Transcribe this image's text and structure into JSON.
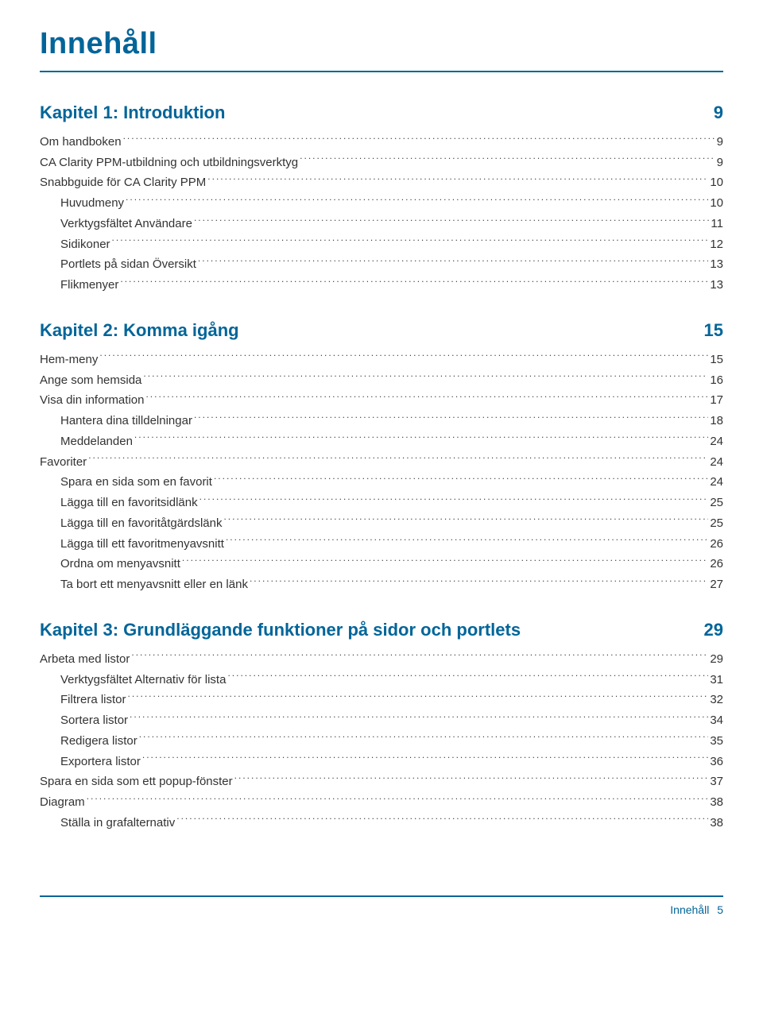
{
  "title": "Innehåll",
  "colors": {
    "heading": "#026599",
    "body_text": "#333333",
    "rule": "#026599",
    "background": "#ffffff"
  },
  "typography": {
    "title_fontsize": 38,
    "chapter_fontsize": 22,
    "entry_fontsize": 15
  },
  "chapters": [
    {
      "heading": "Kapitel 1: Introduktion",
      "page": "9",
      "entries": [
        {
          "label": "Om handboken",
          "page": "9",
          "indent": 0
        },
        {
          "label": "CA Clarity PPM-utbildning och utbildningsverktyg",
          "page": "9",
          "indent": 0
        },
        {
          "label": "Snabbguide för CA Clarity PPM",
          "page": "10",
          "indent": 0
        },
        {
          "label": "Huvudmeny",
          "page": "10",
          "indent": 1
        },
        {
          "label": "Verktygsfältet Användare",
          "page": "11",
          "indent": 1
        },
        {
          "label": "Sidikoner",
          "page": "12",
          "indent": 1
        },
        {
          "label": "Portlets på sidan Översikt",
          "page": "13",
          "indent": 1
        },
        {
          "label": "Flikmenyer",
          "page": "13",
          "indent": 1
        }
      ]
    },
    {
      "heading": "Kapitel 2: Komma igång",
      "page": "15",
      "entries": [
        {
          "label": "Hem-meny",
          "page": "15",
          "indent": 0
        },
        {
          "label": "Ange som hemsida",
          "page": "16",
          "indent": 0
        },
        {
          "label": "Visa din information",
          "page": "17",
          "indent": 0
        },
        {
          "label": "Hantera dina tilldelningar",
          "page": "18",
          "indent": 1
        },
        {
          "label": "Meddelanden",
          "page": "24",
          "indent": 1
        },
        {
          "label": "Favoriter",
          "page": "24",
          "indent": 0
        },
        {
          "label": "Spara en sida som en favorit",
          "page": "24",
          "indent": 1
        },
        {
          "label": "Lägga till en favoritsidlänk",
          "page": "25",
          "indent": 1
        },
        {
          "label": "Lägga till en favoritåtgärdslänk",
          "page": "25",
          "indent": 1
        },
        {
          "label": "Lägga till ett favoritmenyavsnitt",
          "page": "26",
          "indent": 1
        },
        {
          "label": "Ordna om menyavsnitt",
          "page": "26",
          "indent": 1
        },
        {
          "label": "Ta bort ett menyavsnitt eller en länk",
          "page": "27",
          "indent": 1
        }
      ]
    },
    {
      "heading": "Kapitel 3: Grundläggande funktioner på sidor och portlets",
      "page": "29",
      "entries": [
        {
          "label": "Arbeta med listor",
          "page": "29",
          "indent": 0
        },
        {
          "label": "Verktygsfältet Alternativ för lista",
          "page": "31",
          "indent": 1
        },
        {
          "label": "Filtrera listor",
          "page": "32",
          "indent": 1
        },
        {
          "label": "Sortera listor",
          "page": "34",
          "indent": 1
        },
        {
          "label": "Redigera listor",
          "page": "35",
          "indent": 1
        },
        {
          "label": "Exportera listor",
          "page": "36",
          "indent": 1
        },
        {
          "label": "Spara en sida som ett popup-fönster",
          "page": "37",
          "indent": 0
        },
        {
          "label": "Diagram",
          "page": "38",
          "indent": 0
        },
        {
          "label": "Ställa in grafalternativ",
          "page": "38",
          "indent": 1
        }
      ]
    }
  ],
  "footer": {
    "label": "Innehåll",
    "page": "5"
  }
}
